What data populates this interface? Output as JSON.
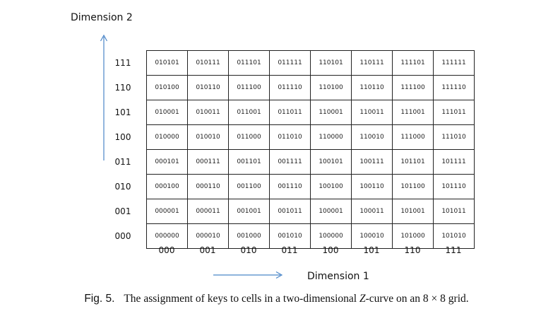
{
  "axes": {
    "dimension2_label": "Dimension 2",
    "dimension1_label": "Dimension 1",
    "arrow_color": "#4a86c8"
  },
  "row_labels": [
    "111",
    "110",
    "101",
    "100",
    "011",
    "010",
    "001",
    "000"
  ],
  "column_labels": [
    "000",
    "001",
    "010",
    "011",
    "100",
    "101",
    "110",
    "111"
  ],
  "grid": [
    [
      "010101",
      "010111",
      "011101",
      "011111",
      "110101",
      "110111",
      "111101",
      "111111"
    ],
    [
      "010100",
      "010110",
      "011100",
      "011110",
      "110100",
      "110110",
      "111100",
      "111110"
    ],
    [
      "010001",
      "010011",
      "011001",
      "011011",
      "110001",
      "110011",
      "111001",
      "111011"
    ],
    [
      "010000",
      "010010",
      "011000",
      "011010",
      "110000",
      "110010",
      "111000",
      "111010"
    ],
    [
      "000101",
      "000111",
      "001101",
      "001111",
      "100101",
      "100111",
      "101101",
      "101111"
    ],
    [
      "000100",
      "000110",
      "001100",
      "001110",
      "100100",
      "100110",
      "101100",
      "101110"
    ],
    [
      "000001",
      "000011",
      "001001",
      "001011",
      "100001",
      "100011",
      "101001",
      "101011"
    ],
    [
      "000000",
      "000010",
      "001000",
      "001010",
      "100000",
      "100010",
      "101000",
      "101010"
    ]
  ],
  "caption": {
    "label": "Fig. 5.",
    "text_before": "The assignment of keys to cells in a two-dimensional ",
    "italic_term": "Z",
    "text_after": "-curve on an 8 × 8 grid."
  }
}
